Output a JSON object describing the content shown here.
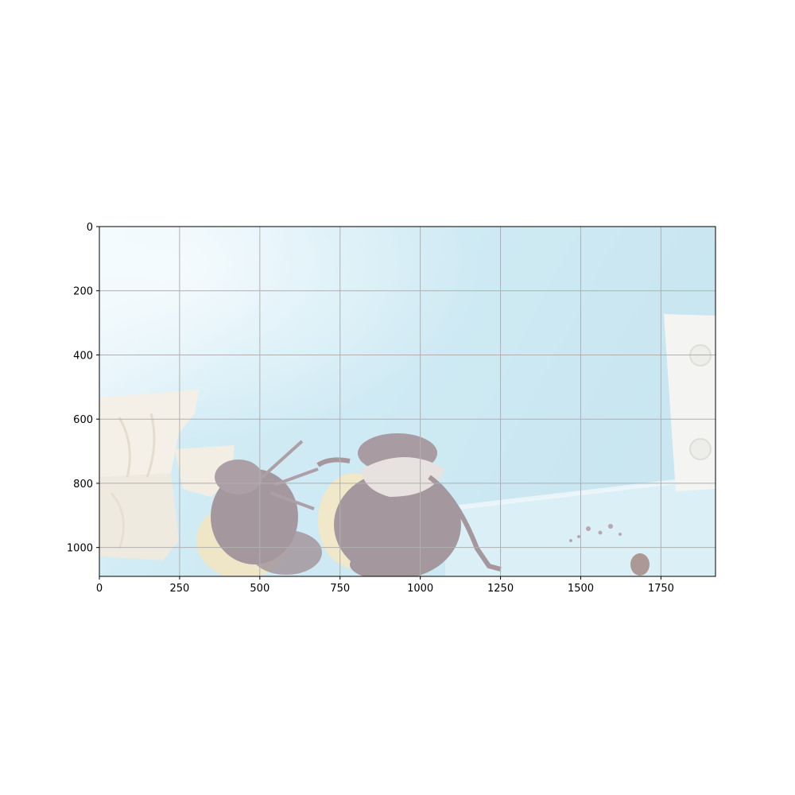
{
  "figure": {
    "description_free": true
  },
  "chart_data": {
    "type": "image",
    "xlim": [
      0,
      1920
    ],
    "ylim": [
      1090,
      0
    ],
    "x_ticks": [
      "0",
      "250",
      "500",
      "750",
      "1000",
      "1250",
      "1500",
      "1750"
    ],
    "y_ticks": [
      "0",
      "200",
      "400",
      "600",
      "800",
      "1000"
    ],
    "x_tick_values": [
      0,
      250,
      500,
      750,
      1000,
      1250,
      1500,
      1750
    ],
    "y_tick_values": [
      0,
      200,
      400,
      600,
      800,
      1000
    ],
    "grid": true,
    "colors": {
      "background_light": "#e6f4fb",
      "background_blue": "#a8d7e8",
      "bee_dark": "#6d5862",
      "bee_yellow": "#e8d9a8",
      "wing": "#d8d0cc",
      "wood": "#eee7d8",
      "bracket": "#eeeeea",
      "grid": "#b0b0b0"
    }
  }
}
